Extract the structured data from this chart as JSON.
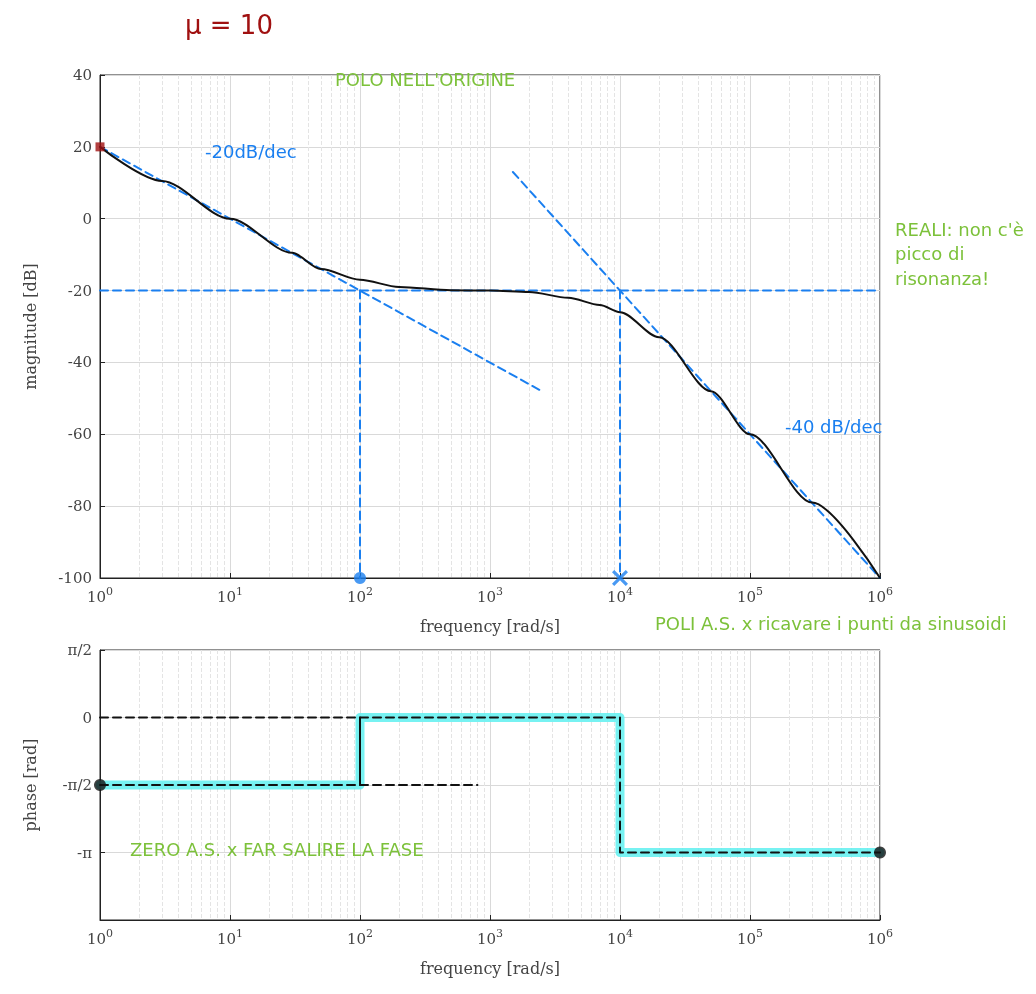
{
  "chart_data": [
    {
      "type": "line",
      "xlabel": "frequency [rad/s]",
      "ylabel": "magnitude [dB]",
      "log": "x",
      "grid": true,
      "xlim": [
        1,
        1000000
      ],
      "xticks": [
        {
          "value": 1,
          "label": "10$^{0}$"
        },
        {
          "value": 10,
          "label": "10$^{1}$"
        },
        {
          "value": 100,
          "label": "10$^{2}$"
        },
        {
          "value": 1000,
          "label": "10$^{3}$"
        },
        {
          "value": 10000,
          "label": "10$^{4}$"
        },
        {
          "value": 100000,
          "label": "10$^{5}$"
        },
        {
          "value": 1000000,
          "label": "10$^{6}$"
        }
      ],
      "ylim": [
        -100,
        40
      ],
      "yticks": [
        -100,
        -80,
        -60,
        -40,
        -20,
        0,
        20,
        40
      ],
      "series": [
        {
          "type": "line",
          "color": "#1a7ff0",
          "line_style": "dashed",
          "x": [
            1,
            100,
            2500
          ],
          "values": [
            20,
            -20,
            -48
          ]
        },
        {
          "type": "line",
          "color": "#1a7ff0",
          "line_style": "dashed",
          "x": [
            1,
            1000000
          ],
          "values": [
            -20,
            -20
          ]
        },
        {
          "type": "line",
          "color": "#1a7ff0",
          "line_style": "dashed",
          "x": [
            1500,
            10000,
            1000000
          ],
          "values": [
            13,
            -20,
            -100
          ]
        },
        {
          "type": "line",
          "color": "#1a7ff0",
          "line_style": "dashed",
          "x": [
            100,
            100
          ],
          "values": [
            -20,
            -100
          ]
        },
        {
          "type": "line",
          "color": "#1a7ff0",
          "line_style": "dashed",
          "x": [
            10000,
            10000
          ],
          "values": [
            -20,
            -100
          ]
        },
        {
          "type": "line",
          "color": "#111111",
          "line_style": "solid",
          "x": [
            1,
            3,
            10,
            30,
            50,
            100,
            200,
            500,
            1000,
            2000,
            4000,
            7000,
            10000,
            20000,
            50000,
            100000,
            300000,
            1000000
          ],
          "values": [
            20,
            10.5,
            0,
            -9.5,
            -14,
            -17,
            -19,
            -19.9,
            -20,
            -20.4,
            -22,
            -24,
            -26,
            -33,
            -48,
            -60,
            -79,
            -100
          ]
        },
        {
          "type": "scatter",
          "color": "#1a7ff0",
          "marker": "circle",
          "x": [
            100
          ],
          "values": [
            -100
          ]
        },
        {
          "type": "scatter",
          "color": "#1a7ff0",
          "marker": "cross",
          "x": [
            10000
          ],
          "values": [
            -100
          ]
        },
        {
          "type": "scatter",
          "color": "#a01010",
          "marker": "square",
          "x": [
            1
          ],
          "values": [
            20
          ]
        }
      ],
      "annotations": [
        "μ = 10",
        "POLO NELL'ORIGINE",
        "-20dB/dec",
        "REALI: non c'è picco di risonanza!",
        "-40 dB/dec",
        "POLI A.S. x ricavare i punti da sinusoidi"
      ]
    },
    {
      "type": "line",
      "xlabel": "frequency [rad/s]",
      "ylabel": "phase [rad]",
      "log": "x",
      "grid": true,
      "xlim": [
        1,
        1000000
      ],
      "xticks": [
        {
          "value": 1,
          "label": "10$^{0}$"
        },
        {
          "value": 10,
          "label": "10$^{1}$"
        },
        {
          "value": 100,
          "label": "10$^{2}$"
        },
        {
          "value": 1000,
          "label": "10$^{3}$"
        },
        {
          "value": 10000,
          "label": "10$^{4}$"
        },
        {
          "value": 100000,
          "label": "10$^{5}$"
        },
        {
          "value": 1000000,
          "label": "10$^{6}$"
        }
      ],
      "ylim": [
        -4.71,
        1.57
      ],
      "yticks": [
        {
          "value": -3.14,
          "label": "-π"
        },
        {
          "value": -1.57,
          "label": "-π/2"
        },
        {
          "value": 0,
          "label": "0"
        },
        {
          "value": 1.57,
          "label": "π/2"
        }
      ],
      "series": [
        {
          "type": "step",
          "color": "#5ff0f0",
          "line_style": "solid",
          "x": [
            1,
            100,
            100,
            10000,
            10000,
            1000000
          ],
          "values": [
            -1.57,
            -1.57,
            0,
            0,
            -3.14,
            -3.14
          ]
        },
        {
          "type": "line",
          "color": "#111111",
          "line_style": "dashed",
          "x": [
            1,
            10000,
            10000,
            1000000
          ],
          "values": [
            0,
            0,
            -3.14,
            -3.14
          ]
        },
        {
          "type": "line",
          "color": "#111111",
          "line_style": "dashed",
          "x": [
            1,
            800
          ],
          "values": [
            -1.57,
            -1.57
          ]
        },
        {
          "type": "line",
          "color": "#111111",
          "line_style": "solid",
          "x": [
            100,
            100
          ],
          "values": [
            -1.57,
            0
          ]
        },
        {
          "type": "scatter",
          "color": "#111111",
          "marker": "circle",
          "x": [
            1,
            1000000
          ],
          "values": [
            -1.57,
            -3.14
          ]
        }
      ],
      "annotations": [
        "ZERO A.S. x FAR SALIRE LA FASE"
      ]
    }
  ]
}
